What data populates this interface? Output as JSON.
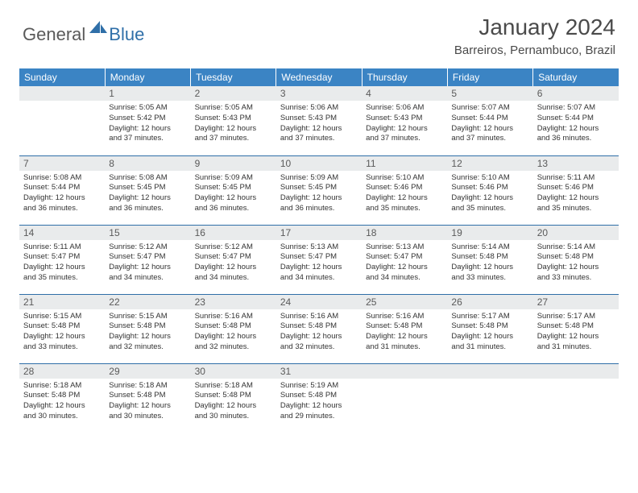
{
  "logo": {
    "general": "General",
    "blue": "Blue"
  },
  "title": "January 2024",
  "location": "Barreiros, Pernambuco, Brazil",
  "colors": {
    "header_bg": "#3b84c4",
    "header_text": "#ffffff",
    "daynum_bg": "#e9ebec",
    "border": "#2f6fa8",
    "text": "#333333",
    "logo_gray": "#5a5a5a",
    "logo_blue": "#2f6fa8"
  },
  "weekdays": [
    "Sunday",
    "Monday",
    "Tuesday",
    "Wednesday",
    "Thursday",
    "Friday",
    "Saturday"
  ],
  "weeks": [
    [
      null,
      {
        "n": "1",
        "sr": "Sunrise: 5:05 AM",
        "ss": "Sunset: 5:42 PM",
        "d1": "Daylight: 12 hours",
        "d2": "and 37 minutes."
      },
      {
        "n": "2",
        "sr": "Sunrise: 5:05 AM",
        "ss": "Sunset: 5:43 PM",
        "d1": "Daylight: 12 hours",
        "d2": "and 37 minutes."
      },
      {
        "n": "3",
        "sr": "Sunrise: 5:06 AM",
        "ss": "Sunset: 5:43 PM",
        "d1": "Daylight: 12 hours",
        "d2": "and 37 minutes."
      },
      {
        "n": "4",
        "sr": "Sunrise: 5:06 AM",
        "ss": "Sunset: 5:43 PM",
        "d1": "Daylight: 12 hours",
        "d2": "and 37 minutes."
      },
      {
        "n": "5",
        "sr": "Sunrise: 5:07 AM",
        "ss": "Sunset: 5:44 PM",
        "d1": "Daylight: 12 hours",
        "d2": "and 37 minutes."
      },
      {
        "n": "6",
        "sr": "Sunrise: 5:07 AM",
        "ss": "Sunset: 5:44 PM",
        "d1": "Daylight: 12 hours",
        "d2": "and 36 minutes."
      }
    ],
    [
      {
        "n": "7",
        "sr": "Sunrise: 5:08 AM",
        "ss": "Sunset: 5:44 PM",
        "d1": "Daylight: 12 hours",
        "d2": "and 36 minutes."
      },
      {
        "n": "8",
        "sr": "Sunrise: 5:08 AM",
        "ss": "Sunset: 5:45 PM",
        "d1": "Daylight: 12 hours",
        "d2": "and 36 minutes."
      },
      {
        "n": "9",
        "sr": "Sunrise: 5:09 AM",
        "ss": "Sunset: 5:45 PM",
        "d1": "Daylight: 12 hours",
        "d2": "and 36 minutes."
      },
      {
        "n": "10",
        "sr": "Sunrise: 5:09 AM",
        "ss": "Sunset: 5:45 PM",
        "d1": "Daylight: 12 hours",
        "d2": "and 36 minutes."
      },
      {
        "n": "11",
        "sr": "Sunrise: 5:10 AM",
        "ss": "Sunset: 5:46 PM",
        "d1": "Daylight: 12 hours",
        "d2": "and 35 minutes."
      },
      {
        "n": "12",
        "sr": "Sunrise: 5:10 AM",
        "ss": "Sunset: 5:46 PM",
        "d1": "Daylight: 12 hours",
        "d2": "and 35 minutes."
      },
      {
        "n": "13",
        "sr": "Sunrise: 5:11 AM",
        "ss": "Sunset: 5:46 PM",
        "d1": "Daylight: 12 hours",
        "d2": "and 35 minutes."
      }
    ],
    [
      {
        "n": "14",
        "sr": "Sunrise: 5:11 AM",
        "ss": "Sunset: 5:47 PM",
        "d1": "Daylight: 12 hours",
        "d2": "and 35 minutes."
      },
      {
        "n": "15",
        "sr": "Sunrise: 5:12 AM",
        "ss": "Sunset: 5:47 PM",
        "d1": "Daylight: 12 hours",
        "d2": "and 34 minutes."
      },
      {
        "n": "16",
        "sr": "Sunrise: 5:12 AM",
        "ss": "Sunset: 5:47 PM",
        "d1": "Daylight: 12 hours",
        "d2": "and 34 minutes."
      },
      {
        "n": "17",
        "sr": "Sunrise: 5:13 AM",
        "ss": "Sunset: 5:47 PM",
        "d1": "Daylight: 12 hours",
        "d2": "and 34 minutes."
      },
      {
        "n": "18",
        "sr": "Sunrise: 5:13 AM",
        "ss": "Sunset: 5:47 PM",
        "d1": "Daylight: 12 hours",
        "d2": "and 34 minutes."
      },
      {
        "n": "19",
        "sr": "Sunrise: 5:14 AM",
        "ss": "Sunset: 5:48 PM",
        "d1": "Daylight: 12 hours",
        "d2": "and 33 minutes."
      },
      {
        "n": "20",
        "sr": "Sunrise: 5:14 AM",
        "ss": "Sunset: 5:48 PM",
        "d1": "Daylight: 12 hours",
        "d2": "and 33 minutes."
      }
    ],
    [
      {
        "n": "21",
        "sr": "Sunrise: 5:15 AM",
        "ss": "Sunset: 5:48 PM",
        "d1": "Daylight: 12 hours",
        "d2": "and 33 minutes."
      },
      {
        "n": "22",
        "sr": "Sunrise: 5:15 AM",
        "ss": "Sunset: 5:48 PM",
        "d1": "Daylight: 12 hours",
        "d2": "and 32 minutes."
      },
      {
        "n": "23",
        "sr": "Sunrise: 5:16 AM",
        "ss": "Sunset: 5:48 PM",
        "d1": "Daylight: 12 hours",
        "d2": "and 32 minutes."
      },
      {
        "n": "24",
        "sr": "Sunrise: 5:16 AM",
        "ss": "Sunset: 5:48 PM",
        "d1": "Daylight: 12 hours",
        "d2": "and 32 minutes."
      },
      {
        "n": "25",
        "sr": "Sunrise: 5:16 AM",
        "ss": "Sunset: 5:48 PM",
        "d1": "Daylight: 12 hours",
        "d2": "and 31 minutes."
      },
      {
        "n": "26",
        "sr": "Sunrise: 5:17 AM",
        "ss": "Sunset: 5:48 PM",
        "d1": "Daylight: 12 hours",
        "d2": "and 31 minutes."
      },
      {
        "n": "27",
        "sr": "Sunrise: 5:17 AM",
        "ss": "Sunset: 5:48 PM",
        "d1": "Daylight: 12 hours",
        "d2": "and 31 minutes."
      }
    ],
    [
      {
        "n": "28",
        "sr": "Sunrise: 5:18 AM",
        "ss": "Sunset: 5:48 PM",
        "d1": "Daylight: 12 hours",
        "d2": "and 30 minutes."
      },
      {
        "n": "29",
        "sr": "Sunrise: 5:18 AM",
        "ss": "Sunset: 5:48 PM",
        "d1": "Daylight: 12 hours",
        "d2": "and 30 minutes."
      },
      {
        "n": "30",
        "sr": "Sunrise: 5:18 AM",
        "ss": "Sunset: 5:48 PM",
        "d1": "Daylight: 12 hours",
        "d2": "and 30 minutes."
      },
      {
        "n": "31",
        "sr": "Sunrise: 5:19 AM",
        "ss": "Sunset: 5:48 PM",
        "d1": "Daylight: 12 hours",
        "d2": "and 29 minutes."
      },
      null,
      null,
      null
    ]
  ]
}
